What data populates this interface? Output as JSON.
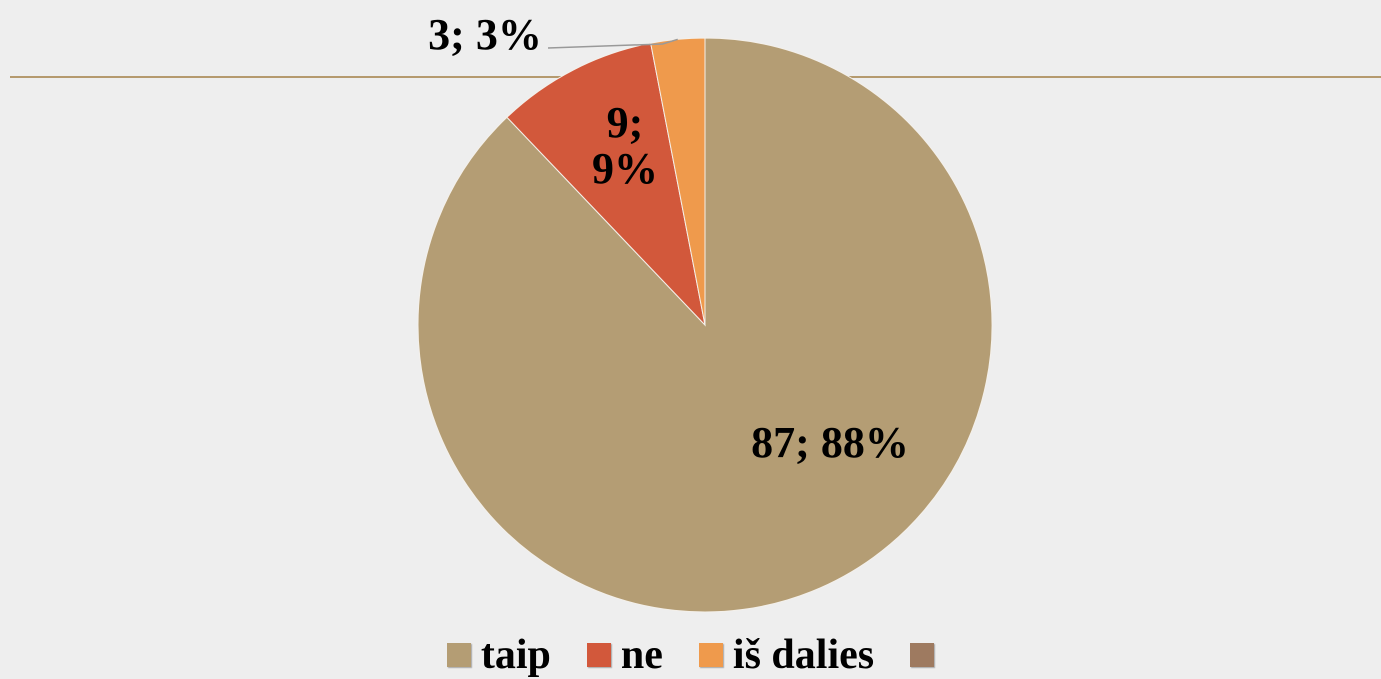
{
  "chart_data": {
    "type": "pie",
    "categories": [
      "taip",
      "ne",
      "iš dalies",
      null
    ],
    "values": [
      87,
      9,
      3,
      null
    ],
    "value_labels": [
      "87; 88%",
      "9; 9%",
      "3; 3%",
      null
    ],
    "colors": [
      "#b49d74",
      "#d2583b",
      "#ef9a4c",
      "#9e7a60"
    ],
    "legend": "bottom"
  }
}
